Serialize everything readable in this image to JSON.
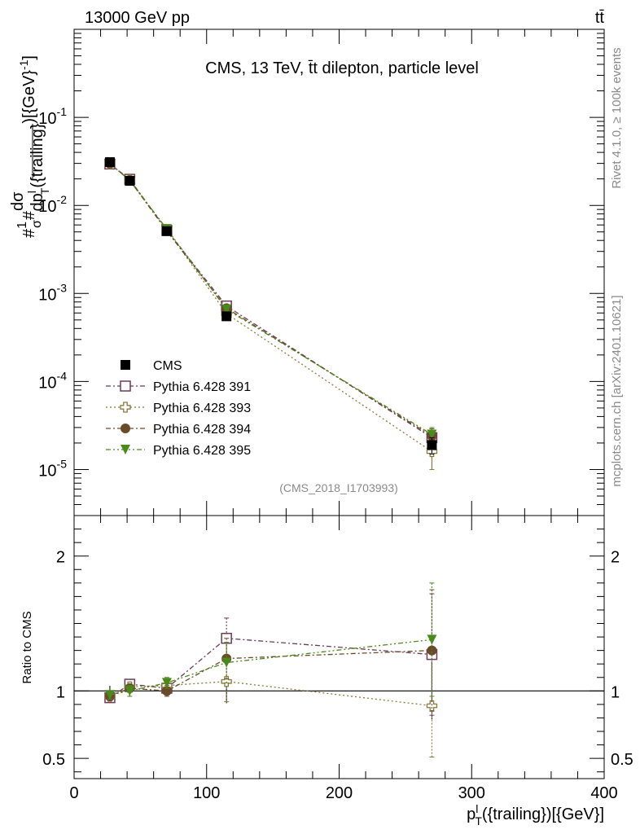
{
  "header": {
    "process": "13000 GeV pp",
    "channel": "tt̄"
  },
  "chart_data": [
    {
      "type": "scatter",
      "panel": "main",
      "title": "CMS, 13 TeV, t̄t dilepton, particle level",
      "ylabel": "#1/σ# dσ/dp_T^l({trailing})[{GeV}^-1]",
      "ylabel_parts": {
        "prefix": "#",
        "frac_num": "1",
        "frac_den": "σ",
        "mid": "#",
        "d_num": "dσ",
        "d_den": "dp",
        "d_den_sup": "l",
        "d_den_sub": "T",
        "d_den_tail": "({trailing}",
        "suffix": ")[{GeV}",
        "suffix_sup": "-1",
        "suffix_end": "]"
      },
      "yscale": "log",
      "ylim": [
        3e-06,
        1.0
      ],
      "xlim": [
        0,
        400
      ],
      "yticks": [
        {
          "value": 0.1,
          "base": "10",
          "exp": "-1"
        },
        {
          "value": 0.01,
          "base": "10",
          "exp": "-2"
        },
        {
          "value": 0.001,
          "base": "10",
          "exp": "-3"
        },
        {
          "value": 0.0001,
          "base": "10",
          "exp": "-4"
        },
        {
          "value": 1e-05,
          "base": "10",
          "exp": "-5"
        }
      ],
      "annotation": "(CMS_2018_I1703993)",
      "legend_position": "center-left",
      "x": [
        27,
        42,
        70,
        115,
        270
      ],
      "series": [
        {
          "name": "CMS",
          "marker": "square-filled",
          "color": "#000000",
          "values": [
            0.031,
            0.019,
            0.0051,
            0.00055,
            1.9e-05
          ],
          "errors": [
            0.0012,
            0.0008,
            0.0002,
            5e-05,
            4e-06
          ]
        },
        {
          "name": "Pythia 6.428 391",
          "marker": "square-open",
          "color": "#6e3a5a",
          "dash": "6,3,2,3",
          "values": [
            0.0295,
            0.0198,
            0.0052,
            0.00072,
            2.3e-05
          ],
          "errors": [
            0.0004,
            0.0003,
            0.0001,
            3e-05,
            4e-06
          ]
        },
        {
          "name": "Pythia 6.428 393",
          "marker": "cross-open",
          "color": "#8a7a3a",
          "dash": "2,3",
          "values": [
            0.0297,
            0.0195,
            0.0053,
            0.00059,
            1.6e-05
          ],
          "errors": [
            0.0004,
            0.0003,
            0.0001,
            3e-05,
            6e-06
          ]
        },
        {
          "name": "Pythia 6.428 394",
          "marker": "circle-filled",
          "color": "#6b4a2a",
          "dash": "6,3,2,3",
          "values": [
            0.0298,
            0.0193,
            0.0051,
            0.00068,
            2.4e-05
          ],
          "errors": [
            0.0004,
            0.0003,
            0.0001,
            3e-05,
            5e-06
          ]
        },
        {
          "name": "Pythia 6.428 395",
          "marker": "triangle-down-filled",
          "color": "#4a8a1a",
          "dash": "6,3,2,3,2,3",
          "values": [
            0.03,
            0.0191,
            0.0054,
            0.00066,
            2.5e-05
          ],
          "errors": [
            0.0004,
            0.0003,
            0.0001,
            3e-05,
            5e-06
          ]
        }
      ]
    },
    {
      "type": "scatter",
      "panel": "ratio",
      "ylabel": "Ratio to CMS",
      "xlabel": "p_T^l({trailing})[{GeV}]",
      "xlabel_parts": {
        "main": "p",
        "sup": "l",
        "sub": "T",
        "tail": "({trailing})[{GeV}]"
      },
      "ylim": [
        0.35,
        2.3
      ],
      "xlim": [
        0,
        400
      ],
      "yticks": [
        {
          "value": 0.5,
          "label": "0.5"
        },
        {
          "value": 1,
          "label": "1"
        },
        {
          "value": 2,
          "label": "2"
        }
      ],
      "xticks": [
        {
          "value": 0,
          "label": "0"
        },
        {
          "value": 100,
          "label": "100"
        },
        {
          "value": 200,
          "label": "200"
        },
        {
          "value": 300,
          "label": "300"
        },
        {
          "value": 400,
          "label": "400"
        }
      ],
      "x": [
        27,
        42,
        70,
        115,
        270
      ],
      "series": [
        {
          "name": "Pythia 6.428 391",
          "values": [
            0.95,
            1.05,
            1.02,
            1.39,
            1.27
          ],
          "errors": [
            0.03,
            0.03,
            0.04,
            0.15,
            0.45
          ]
        },
        {
          "name": "Pythia 6.428 393",
          "values": [
            0.96,
            1.03,
            1.04,
            1.07,
            0.89
          ],
          "errors": [
            0.03,
            0.03,
            0.04,
            0.15,
            0.38
          ]
        },
        {
          "name": "Pythia 6.428 394",
          "values": [
            0.96,
            1.02,
            1.0,
            1.24,
            1.3
          ],
          "errors": [
            0.03,
            0.03,
            0.04,
            0.15,
            0.45
          ]
        },
        {
          "name": "Pythia 6.428 395",
          "values": [
            0.97,
            1.0,
            1.06,
            1.21,
            1.38
          ],
          "errors": [
            0.03,
            0.04,
            0.04,
            0.15,
            0.42
          ]
        }
      ]
    }
  ],
  "side_labels": {
    "rivet": "Rivet 4.1.0, ≥ 100k events",
    "mcplots": "mcplots.cern.ch [arXiv:2401.10621]"
  }
}
